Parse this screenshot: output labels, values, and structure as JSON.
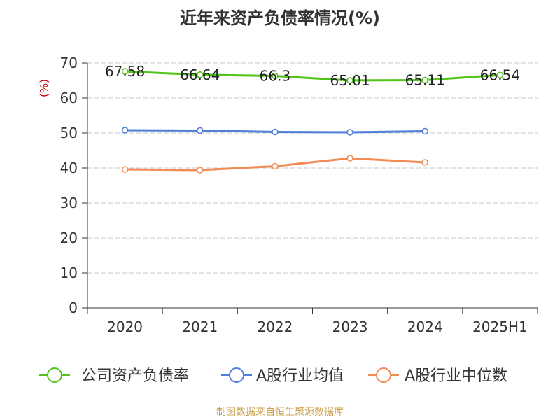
{
  "chart_data": {
    "type": "line",
    "title": "近年来资产负债率情况(%)",
    "ylabel": "(%)",
    "categories": [
      "2020",
      "2021",
      "2022",
      "2023",
      "2024",
      "2025H1"
    ],
    "ylim": [
      0,
      70
    ],
    "yticks": [
      0,
      10,
      20,
      30,
      40,
      50,
      60,
      70
    ],
    "grid": true,
    "legend_position": "bottom",
    "source": "制图数据来自恒生聚源数据库",
    "series": [
      {
        "name": "公司资产负债率",
        "color": "#52c41a",
        "values": [
          67.58,
          66.64,
          66.3,
          65.01,
          65.11,
          66.54
        ],
        "labels": [
          "67.58",
          "66.64",
          "66.3",
          "65.01",
          "65.11",
          "66.54"
        ],
        "show_labels": true
      },
      {
        "name": "A股行业均值",
        "color": "#4f7fdb",
        "values": [
          50.8,
          50.7,
          50.3,
          50.2,
          50.5,
          null
        ],
        "show_labels": false
      },
      {
        "name": "A股行业中位数",
        "color": "#f28b55",
        "values": [
          39.6,
          39.4,
          40.5,
          42.8,
          41.6,
          null
        ],
        "show_labels": false
      }
    ]
  }
}
